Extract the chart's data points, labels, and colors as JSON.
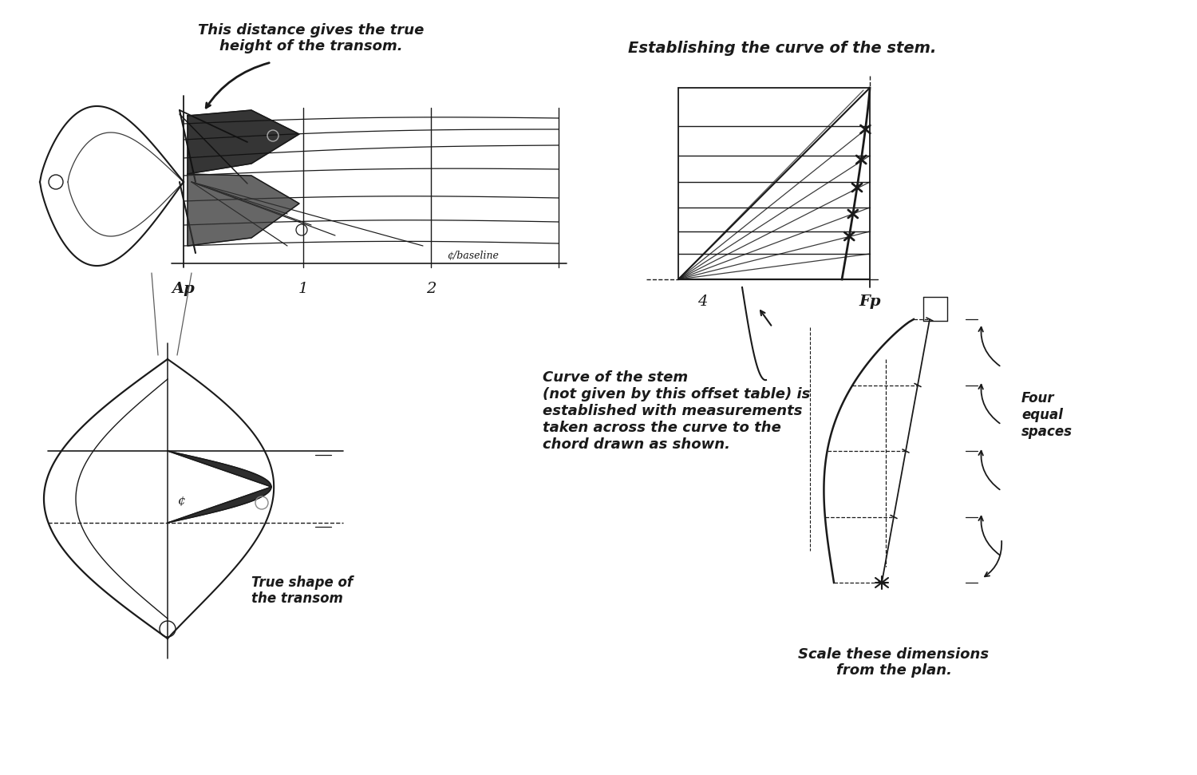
{
  "bg_color": "#ffffff",
  "line_color": "#1a1a1a",
  "text_color": "#1a1a1a",
  "title1": "This distance gives the true\nheight of the transom.",
  "title2": "Establishing the curve of the stem.",
  "label_ap": "Ap",
  "label_1": "1",
  "label_2": "2",
  "label_4": "4",
  "label_fp": "Fp",
  "label_cl_baseline": "¢/baseline",
  "label_cl": "¢",
  "label_true_shape": "True shape of\nthe transom",
  "label_curve": "Curve of the stem\n(not given by this offset table) is\nestablished with measurements\ntaken across the curve to the\nchord drawn as shown.",
  "label_scale": "Scale these dimensions\nfrom the plan.",
  "label_four_equal": "Four\nequal\nspaces"
}
